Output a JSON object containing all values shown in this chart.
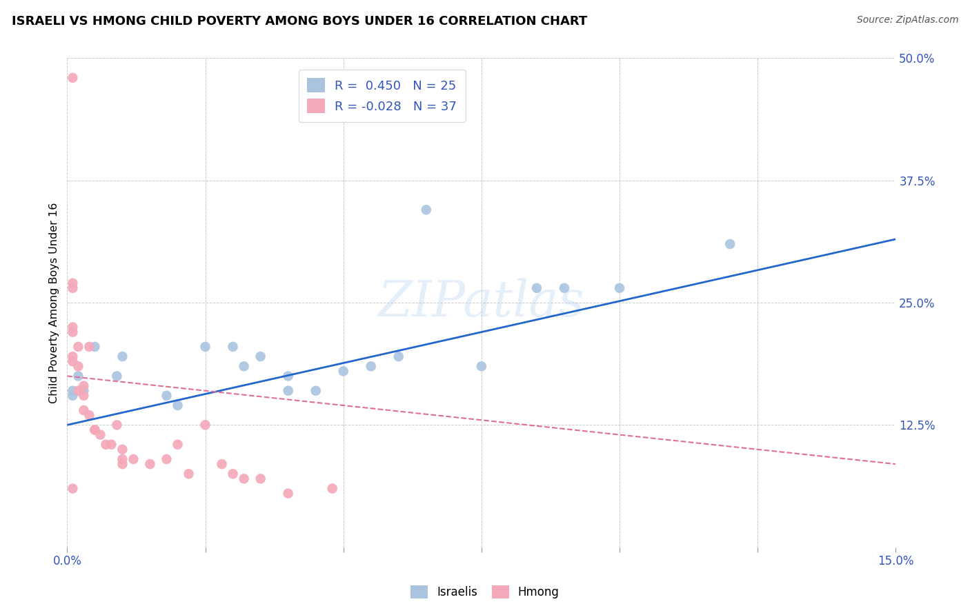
{
  "title": "ISRAELI VS HMONG CHILD POVERTY AMONG BOYS UNDER 16 CORRELATION CHART",
  "source": "Source: ZipAtlas.com",
  "ylabel": "Child Poverty Among Boys Under 16",
  "xlim": [
    0.0,
    0.15
  ],
  "ylim": [
    0.0,
    0.5
  ],
  "xticks": [
    0.0,
    0.025,
    0.05,
    0.075,
    0.1,
    0.125,
    0.15
  ],
  "xticklabels": [
    "0.0%",
    "",
    "",
    "",
    "",
    "",
    "15.0%"
  ],
  "yticks": [
    0.0,
    0.125,
    0.25,
    0.375,
    0.5
  ],
  "yticklabels": [
    "",
    "12.5%",
    "25.0%",
    "37.5%",
    "50.0%"
  ],
  "israeli_color": "#aac4e0",
  "hmong_color": "#f4a8b8",
  "israeli_line_color": "#2266cc",
  "hmong_line_color": "#e07090",
  "israeli_R": 0.45,
  "israeli_N": 25,
  "hmong_R": -0.028,
  "hmong_N": 37,
  "watermark": "ZIPatlas",
  "israeli_x": [
    0.001,
    0.001,
    0.002,
    0.003,
    0.005,
    0.009,
    0.01,
    0.018,
    0.02,
    0.025,
    0.03,
    0.032,
    0.035,
    0.04,
    0.04,
    0.045,
    0.05,
    0.055,
    0.06,
    0.065,
    0.075,
    0.085,
    0.09,
    0.1,
    0.12
  ],
  "israeli_y": [
    0.155,
    0.16,
    0.175,
    0.16,
    0.205,
    0.175,
    0.195,
    0.155,
    0.145,
    0.205,
    0.205,
    0.185,
    0.195,
    0.16,
    0.175,
    0.16,
    0.18,
    0.185,
    0.195,
    0.345,
    0.185,
    0.265,
    0.265,
    0.265,
    0.31
  ],
  "hmong_x": [
    0.001,
    0.001,
    0.001,
    0.001,
    0.001,
    0.001,
    0.001,
    0.001,
    0.002,
    0.002,
    0.002,
    0.003,
    0.003,
    0.003,
    0.004,
    0.004,
    0.005,
    0.005,
    0.006,
    0.007,
    0.008,
    0.009,
    0.01,
    0.01,
    0.01,
    0.012,
    0.015,
    0.018,
    0.02,
    0.022,
    0.025,
    0.028,
    0.03,
    0.032,
    0.035,
    0.04,
    0.048
  ],
  "hmong_y": [
    0.48,
    0.27,
    0.265,
    0.225,
    0.22,
    0.195,
    0.19,
    0.06,
    0.205,
    0.185,
    0.16,
    0.165,
    0.155,
    0.14,
    0.205,
    0.135,
    0.12,
    0.12,
    0.115,
    0.105,
    0.105,
    0.125,
    0.1,
    0.09,
    0.085,
    0.09,
    0.085,
    0.09,
    0.105,
    0.075,
    0.125,
    0.085,
    0.075,
    0.07,
    0.07,
    0.055,
    0.06
  ],
  "israeli_line_x": [
    0.0,
    0.15
  ],
  "israeli_line_y": [
    0.125,
    0.315
  ],
  "hmong_line_x": [
    0.0,
    0.15
  ],
  "hmong_line_y": [
    0.175,
    0.085
  ]
}
